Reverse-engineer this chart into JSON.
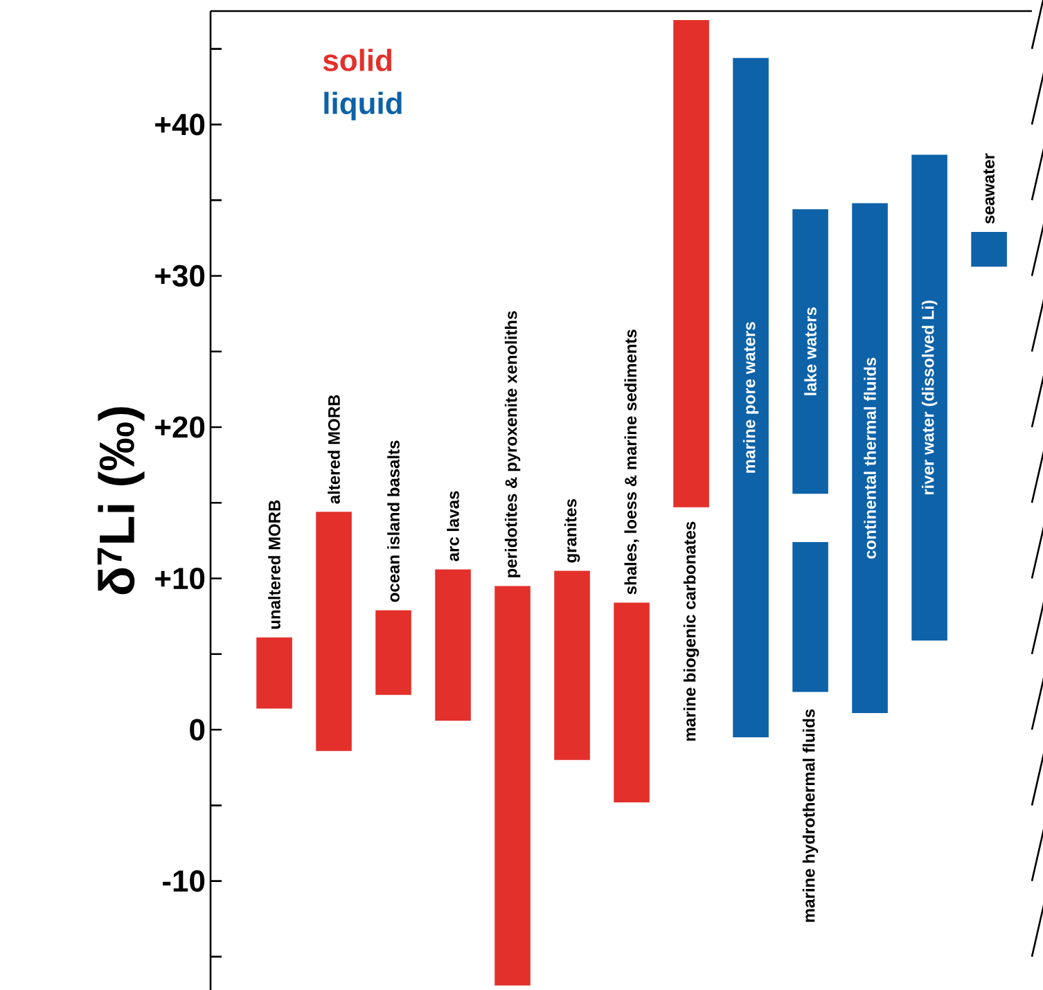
{
  "chart_data": {
    "type": "bar",
    "ylabel": "δ$^{7}$Li (‰)",
    "categories": [
      "unaltered MORB",
      "altered MORB",
      "ocean island basalts",
      "arc lavas",
      "peridotites & pyroxenite xenoliths",
      "granites",
      "shales, loess & marine sediments",
      "marine biogenic carbonates",
      "marine pore waters",
      "lake waters",
      "continental thermal fluids",
      "river water (dissolved Li)",
      "seawater"
    ],
    "series": [
      {
        "name": "solid",
        "color": "#e3302b",
        "base": [
          1.4,
          -1.4,
          2.3,
          0.6,
          -16.9,
          -2.0,
          -4.8,
          14.7,
          null,
          null,
          null,
          null,
          null
        ],
        "values": [
          4.7,
          15.8,
          5.6,
          10.0,
          26.4,
          12.5,
          13.2,
          32.2,
          null,
          null,
          null,
          null,
          null
        ]
      },
      {
        "name": "liquid",
        "color": "#0d62a8",
        "base": [
          null,
          null,
          null,
          null,
          null,
          null,
          null,
          null,
          -0.5,
          15.6,
          1.1,
          5.9,
          30.6
        ],
        "values": [
          null,
          null,
          null,
          null,
          null,
          null,
          null,
          null,
          44.9,
          18.8,
          33.7,
          32.1,
          2.3
        ]
      },
      {
        "color": "#0d62a8",
        "base": [
          null,
          null,
          null,
          null,
          null,
          null,
          null,
          null,
          null,
          2.5,
          null,
          null,
          null
        ],
        "values": [
          null,
          null,
          null,
          null,
          null,
          null,
          null,
          null,
          null,
          9.9,
          null,
          null,
          null
        ]
      }
    ],
    "annotations": [
      "marine hydrothermal fluids"
    ],
    "ylim": [
      -17.2,
      47.5
    ],
    "yticks": [
      {
        "value": -15,
        "label": null
      },
      -10,
      {
        "value": -5,
        "label": null
      },
      0,
      {
        "value": 5,
        "label": null
      },
      {
        "value": 10,
        "label": "+10"
      },
      {
        "value": 15,
        "label": null
      },
      {
        "value": 20,
        "label": "+20"
      },
      {
        "value": 25,
        "label": null
      },
      {
        "value": 30,
        "label": "+30"
      },
      {
        "value": 35,
        "label": null
      },
      {
        "value": 40,
        "label": "+40"
      },
      {
        "value": 45,
        "label": null
      }
    ],
    "tick_labels": "y",
    "legend": "top left"
  }
}
